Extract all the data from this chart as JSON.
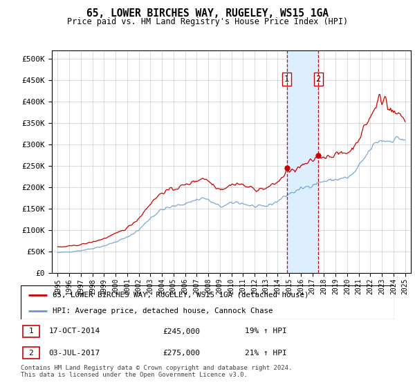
{
  "title": "65, LOWER BIRCHES WAY, RUGELEY, WS15 1GA",
  "subtitle": "Price paid vs. HM Land Registry's House Price Index (HPI)",
  "legend_line1": "65, LOWER BIRCHES WAY, RUGELEY, WS15 1GA (detached house)",
  "legend_line2": "HPI: Average price, detached house, Cannock Chase",
  "footnote": "Contains HM Land Registry data © Crown copyright and database right 2024.\nThis data is licensed under the Open Government Licence v3.0.",
  "sale1_label": "1",
  "sale1_date": "17-OCT-2014",
  "sale1_price": "£245,000",
  "sale1_hpi": "19% ↑ HPI",
  "sale2_label": "2",
  "sale2_date": "03-JUL-2017",
  "sale2_price": "£275,000",
  "sale2_hpi": "21% ↑ HPI",
  "sale1_x": 2014.79,
  "sale1_y": 245000,
  "sale2_x": 2017.5,
  "sale2_y": 275000,
  "red_color": "#cc0000",
  "blue_color": "#6699cc",
  "shade_color": "#ddeeff",
  "ylim": [
    0,
    520000
  ],
  "xlim_start": 1994.5,
  "xlim_end": 2025.5,
  "yticks": [
    0,
    50000,
    100000,
    150000,
    200000,
    250000,
    300000,
    350000,
    400000,
    450000,
    500000
  ],
  "xtick_years": [
    1995,
    1996,
    1997,
    1998,
    1999,
    2000,
    2001,
    2002,
    2003,
    2004,
    2005,
    2006,
    2007,
    2008,
    2009,
    2010,
    2011,
    2012,
    2013,
    2014,
    2015,
    2016,
    2017,
    2018,
    2019,
    2020,
    2021,
    2022,
    2023,
    2024,
    2025
  ]
}
